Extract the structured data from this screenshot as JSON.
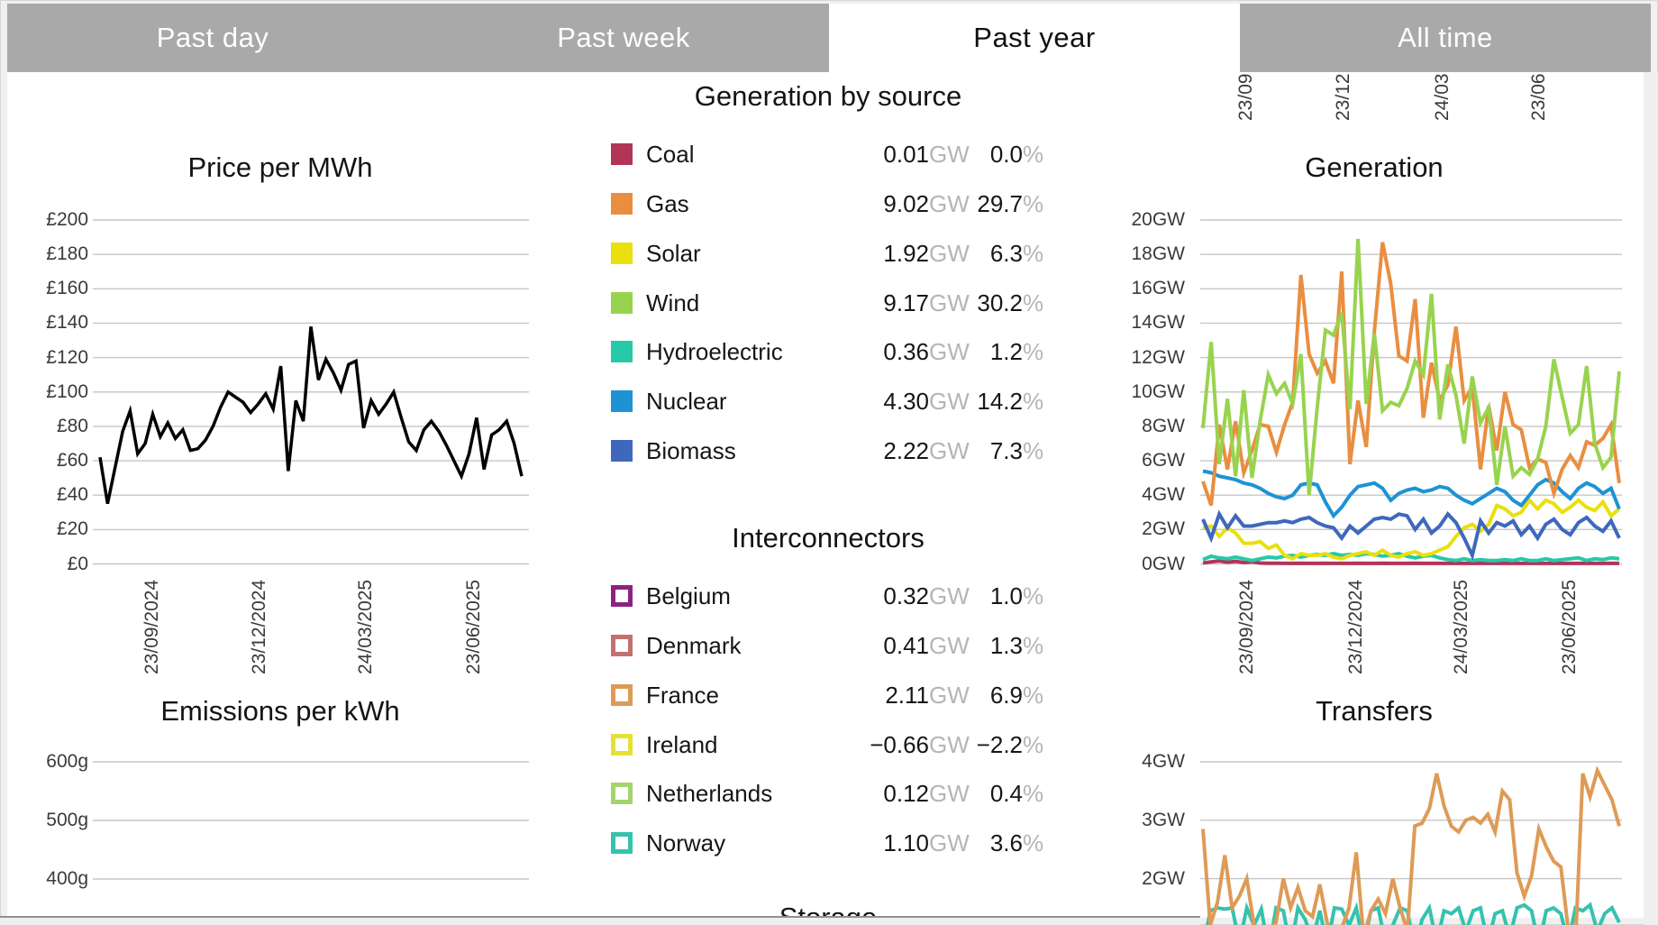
{
  "tabs": [
    {
      "label": "Past day",
      "active": false
    },
    {
      "label": "Past week",
      "active": false
    },
    {
      "label": "Past year",
      "active": true
    },
    {
      "label": "All time",
      "active": false
    }
  ],
  "headings": {
    "generation_by_source": "Generation by source",
    "interconnectors": "Interconnectors",
    "storage": "Storage"
  },
  "units": {
    "power": "GW",
    "percent": "%"
  },
  "top_axis_fragments": [
    "23/09/",
    "23/12/",
    "24/03/",
    "23/06/"
  ],
  "sources": [
    {
      "label": "Coal",
      "color": "#b13557",
      "value": "0.01",
      "pct": "0.0"
    },
    {
      "label": "Gas",
      "color": "#e98e41",
      "value": "9.02",
      "pct": "29.7"
    },
    {
      "label": "Solar",
      "color": "#e9e00d",
      "value": "1.92",
      "pct": "6.3"
    },
    {
      "label": "Wind",
      "color": "#98d34f",
      "value": "9.17",
      "pct": "30.2"
    },
    {
      "label": "Hydroelectric",
      "color": "#26c9a8",
      "value": "0.36",
      "pct": "1.2"
    },
    {
      "label": "Nuclear",
      "color": "#1e93d3",
      "value": "4.30",
      "pct": "14.2"
    },
    {
      "label": "Biomass",
      "color": "#3f68bc",
      "value": "2.22",
      "pct": "7.3"
    }
  ],
  "interconnectors": [
    {
      "label": "Belgium",
      "color": "#8c2382",
      "value": "0.32",
      "pct": "1.0"
    },
    {
      "label": "Denmark",
      "color": "#c2716f",
      "value": "0.41",
      "pct": "1.3"
    },
    {
      "label": "France",
      "color": "#de9b56",
      "value": "2.11",
      "pct": "6.9"
    },
    {
      "label": "Ireland",
      "color": "#e4e135",
      "value": "−0.66",
      "pct": "−2.2"
    },
    {
      "label": "Netherlands",
      "color": "#a4d46c",
      "value": "0.12",
      "pct": "0.4"
    },
    {
      "label": "Norway",
      "color": "#35c2ae",
      "value": "1.10",
      "pct": "3.6"
    }
  ],
  "chart_data": [
    {
      "type": "line",
      "title": "Price per MWh",
      "ylabels": [
        "£200",
        "£180",
        "£160",
        "£140",
        "£120",
        "£100",
        "£80",
        "£60",
        "£40",
        "£20",
        "£0"
      ],
      "ylim": [
        0,
        200
      ],
      "grid": true,
      "legend_position": "none",
      "x_ticks": [
        "23/09/2024",
        "23/12/2024",
        "24/03/2025",
        "23/06/2025"
      ],
      "series": [
        {
          "name": "Price",
          "color": "#000000",
          "values": [
            62,
            35,
            56,
            77,
            89,
            64,
            70,
            87,
            74,
            82,
            73,
            78,
            66,
            67,
            72,
            80,
            91,
            100,
            97,
            94,
            88,
            93,
            99,
            90,
            115,
            54,
            95,
            83,
            138,
            107,
            119,
            111,
            101,
            116,
            118,
            79,
            95,
            87,
            93,
            100,
            85,
            71,
            66,
            78,
            83,
            77,
            69,
            60,
            51,
            64,
            85,
            55,
            75,
            78,
            83,
            70,
            51
          ]
        }
      ]
    },
    {
      "type": "line",
      "title": "Generation",
      "ylabels": [
        "20GW",
        "18GW",
        "16GW",
        "14GW",
        "12GW",
        "10GW",
        "8GW",
        "6GW",
        "4GW",
        "2GW",
        "0GW"
      ],
      "ylim": [
        0,
        20
      ],
      "grid": true,
      "legend_position": "none",
      "x_ticks": [
        "23/09/2024",
        "23/12/2024",
        "24/03/2025",
        "23/06/2025"
      ],
      "series": [
        {
          "name": "Coal",
          "color": "#b13557",
          "values": [
            0.05,
            0.12,
            0.18,
            0.1,
            0.15,
            0.08,
            0.12,
            0.05,
            0.04,
            0.04,
            0.03,
            0.03,
            0.04,
            0.03,
            0.03,
            0.04,
            0.03,
            0.03,
            0.03,
            0.04,
            0.03,
            0.03,
            0.04,
            0.03,
            0.03,
            0.03,
            0.04,
            0.03,
            0.03,
            0.03,
            0.03,
            0.03,
            0.03,
            0.03,
            0.03,
            0.03,
            0.03,
            0.03,
            0.03,
            0.03,
            0.03,
            0.03,
            0.03,
            0.03,
            0.03,
            0.03,
            0.03,
            0.03,
            0.03,
            0.03,
            0.03,
            0.03
          ]
        },
        {
          "name": "Gas",
          "color": "#e98e41",
          "values": [
            4.8,
            3.4,
            8.1,
            5.5,
            8.3,
            5.3,
            6.6,
            8.1,
            8.0,
            6.5,
            8.1,
            9.4,
            16.8,
            12.2,
            11.1,
            11.8,
            10.5,
            17.0,
            5.8,
            9.5,
            6.8,
            13.5,
            18.7,
            16.3,
            12.1,
            11.8,
            15.4,
            8.5,
            11.7,
            9.5,
            10.4,
            13.8,
            9.5,
            10.3,
            5.5,
            9.2,
            6.6,
            10.0,
            8.1,
            7.8,
            5.6,
            6.1,
            5.9,
            4.1,
            5.5,
            6.3,
            5.6,
            7.1,
            6.9,
            7.3,
            8.1,
            4.7
          ]
        },
        {
          "name": "Solar",
          "color": "#e9e00d",
          "values": [
            2.1,
            2.2,
            1.6,
            2.1,
            1.8,
            1.2,
            1.2,
            1.3,
            0.9,
            1.1,
            0.5,
            0.3,
            0.6,
            0.5,
            0.5,
            0.6,
            0.4,
            0.3,
            0.5,
            0.6,
            0.7,
            0.5,
            0.8,
            0.5,
            0.4,
            0.6,
            0.7,
            0.5,
            0.6,
            0.8,
            1.0,
            1.6,
            2.1,
            2.3,
            1.9,
            2.3,
            3.4,
            3.2,
            2.8,
            3.0,
            3.7,
            3.2,
            3.7,
            3.5,
            3.0,
            3.3,
            3.7,
            3.3,
            3.1,
            3.6,
            2.8,
            3.2
          ]
        },
        {
          "name": "Wind",
          "color": "#98d34f",
          "values": [
            7.9,
            12.9,
            5.8,
            9.6,
            5.1,
            10.1,
            5.0,
            8.3,
            11.0,
            9.9,
            10.5,
            9.3,
            12.2,
            4.0,
            9.1,
            13.6,
            13.3,
            14.6,
            9.0,
            18.9,
            9.3,
            13.4,
            8.9,
            9.4,
            9.2,
            10.2,
            11.8,
            11.0,
            15.7,
            8.4,
            11.6,
            9.8,
            7.0,
            10.9,
            8.2,
            9.1,
            4.6,
            8.0,
            5.1,
            5.6,
            5.2,
            6.1,
            8.0,
            11.9,
            9.7,
            7.6,
            8.1,
            11.5,
            7.0,
            5.6,
            6.2,
            11.2
          ]
        },
        {
          "name": "Hydroelectric",
          "color": "#26c9a8",
          "values": [
            0.25,
            0.45,
            0.35,
            0.3,
            0.4,
            0.3,
            0.2,
            0.3,
            0.4,
            0.35,
            0.45,
            0.5,
            0.4,
            0.5,
            0.55,
            0.5,
            0.6,
            0.5,
            0.55,
            0.5,
            0.6,
            0.55,
            0.45,
            0.5,
            0.6,
            0.45,
            0.35,
            0.45,
            0.5,
            0.35,
            0.25,
            0.2,
            0.3,
            0.2,
            0.25,
            0.2,
            0.2,
            0.25,
            0.2,
            0.3,
            0.2,
            0.2,
            0.3,
            0.2,
            0.25,
            0.3,
            0.35,
            0.2,
            0.3,
            0.25,
            0.35,
            0.3
          ]
        },
        {
          "name": "Nuclear",
          "color": "#1e93d3",
          "values": [
            5.4,
            5.3,
            5.1,
            5.0,
            4.9,
            4.7,
            4.6,
            4.4,
            4.1,
            3.9,
            3.8,
            4.0,
            4.6,
            4.7,
            4.6,
            3.6,
            2.8,
            3.3,
            4.0,
            4.5,
            4.6,
            4.7,
            4.4,
            3.7,
            4.1,
            4.3,
            4.4,
            4.2,
            4.3,
            4.5,
            4.4,
            4.0,
            3.7,
            3.5,
            3.8,
            4.1,
            4.4,
            4.2,
            3.7,
            3.4,
            4.0,
            4.6,
            4.9,
            4.7,
            4.2,
            3.8,
            4.4,
            4.7,
            4.5,
            4.1,
            4.4,
            3.2
          ]
        },
        {
          "name": "Biomass",
          "color": "#3f68bc",
          "values": [
            2.6,
            1.5,
            2.9,
            2.1,
            2.8,
            2.2,
            2.2,
            2.3,
            2.4,
            2.4,
            2.5,
            2.4,
            2.6,
            2.7,
            2.4,
            2.2,
            2.1,
            1.5,
            2.2,
            1.8,
            2.2,
            2.6,
            2.7,
            2.6,
            2.9,
            2.8,
            2.0,
            2.6,
            1.8,
            2.2,
            2.9,
            2.4,
            1.5,
            0.5,
            2.5,
            1.8,
            2.4,
            2.2,
            2.5,
            1.7,
            2.2,
            1.5,
            2.3,
            2.6,
            2.0,
            1.7,
            2.4,
            2.7,
            2.2,
            1.9,
            2.5,
            1.5
          ]
        }
      ]
    },
    {
      "type": "line",
      "title": "Emissions per kWh",
      "ylabels": [
        "600g",
        "500g",
        "400g"
      ],
      "ylim_visible": [
        400,
        600
      ],
      "grid": true,
      "legend_position": "none",
      "x_ticks": [],
      "series": []
    },
    {
      "type": "line",
      "title": "Transfers",
      "ylabels": [
        "4GW",
        "3GW",
        "2GW"
      ],
      "ylim_visible": [
        2,
        4
      ],
      "grid": true,
      "legend_position": "none",
      "x_ticks": [],
      "series": [
        {
          "name": "Norway",
          "color": "#35c2ae",
          "values": [
            0.8,
            1.45,
            1.5,
            1.48,
            1.5,
            0.9,
            1.5,
            1.2,
            1.48,
            0.75,
            1.5,
            1.45,
            0.8,
            1.5,
            1.3,
            0.95,
            1.45,
            0.85,
            1.5,
            1.48,
            1.2,
            1.5,
            0.85,
            1.45,
            1.5,
            0.9,
            1.2,
            1.5,
            1.45,
            0.8,
            1.3,
            1.5,
            0.9,
            1.45,
            1.4,
            1.5,
            1.1,
            1.45,
            1.5,
            0.9,
            1.4,
            1.45,
            1.0,
            1.5,
            1.55,
            1.45,
            0.85,
            1.45,
            1.5,
            1.4,
            0.9,
            1.5,
            1.45,
            1.55,
            1.1,
            1.4,
            1.5,
            1.25
          ]
        },
        {
          "name": "France",
          "color": "#de9b56",
          "values": [
            2.85,
            1.2,
            1.6,
            2.4,
            1.5,
            1.7,
            2.0,
            1.2,
            0.95,
            1.1,
            1.25,
            2.0,
            1.5,
            1.85,
            1.45,
            1.35,
            1.9,
            1.25,
            0.8,
            1.15,
            1.5,
            2.45,
            1.0,
            1.45,
            1.65,
            1.4,
            2.0,
            1.5,
            1.1,
            2.9,
            2.95,
            3.2,
            3.8,
            3.25,
            2.9,
            2.8,
            3.0,
            3.05,
            2.95,
            3.1,
            2.8,
            3.5,
            3.35,
            2.1,
            1.7,
            2.05,
            2.85,
            2.55,
            2.3,
            2.2,
            1.15,
            0.9,
            3.8,
            3.4,
            3.85,
            3.6,
            3.35,
            2.9
          ]
        }
      ]
    }
  ]
}
